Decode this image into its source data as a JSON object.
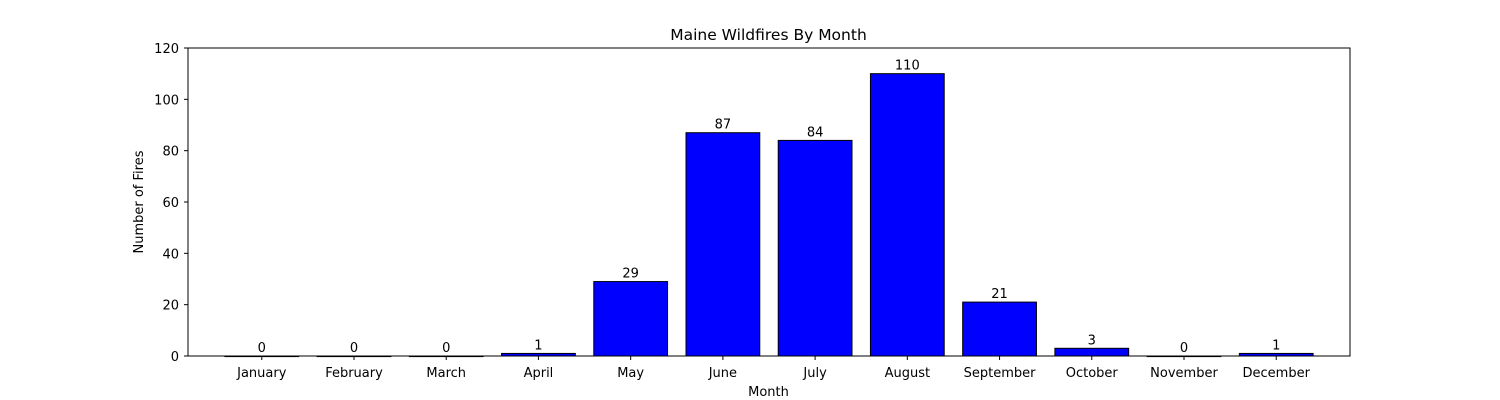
{
  "chart_data": {
    "type": "bar",
    "title": "Maine Wildfires By Month",
    "xlabel": "Month",
    "ylabel": "Number of Fires",
    "categories": [
      "January",
      "February",
      "March",
      "April",
      "May",
      "June",
      "July",
      "August",
      "September",
      "October",
      "November",
      "December"
    ],
    "values": [
      0,
      0,
      0,
      1,
      29,
      87,
      84,
      110,
      21,
      3,
      0,
      1
    ],
    "data_labels": [
      "0",
      "0",
      "0",
      "1",
      "29",
      "87",
      "84",
      "110",
      "21",
      "3",
      "0",
      "1"
    ],
    "ylim": [
      0,
      120
    ],
    "yticks": [
      0,
      20,
      40,
      60,
      80,
      100,
      120
    ],
    "ytick_labels": [
      "0",
      "20",
      "40",
      "60",
      "80",
      "100",
      "120"
    ],
    "grid": false,
    "legend": "none",
    "bar_color": "#0000ff",
    "bar_edge_color": "#000000"
  }
}
